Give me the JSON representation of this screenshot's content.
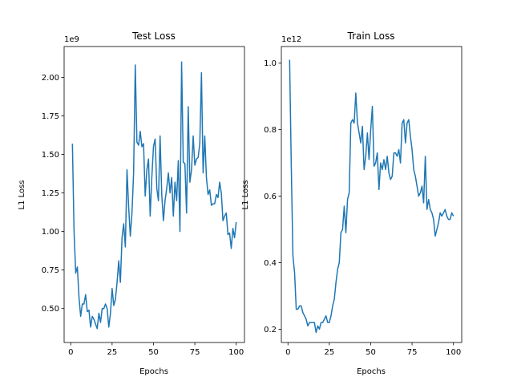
{
  "chart_data": [
    {
      "type": "line",
      "title": "Test Loss",
      "xlabel": "Epochs",
      "ylabel": "L1 Loss",
      "offset_text": "1e9",
      "scale": 1000000000,
      "xlim": [
        -4,
        105
      ],
      "ylim": [
        0.28,
        2.2
      ],
      "xticks": [
        0,
        25,
        50,
        75,
        100
      ],
      "xtick_labels": [
        "0",
        "25",
        "50",
        "75",
        "100"
      ],
      "yticks": [
        0.5,
        0.75,
        1.0,
        1.25,
        1.5,
        1.75,
        2.0
      ],
      "ytick_labels": [
        "0.50",
        "0.75",
        "1.00",
        "1.25",
        "1.50",
        "1.75",
        "2.00"
      ],
      "grid": false,
      "color": "#1f77b4",
      "series": [
        {
          "x": [
            1,
            2,
            3,
            4,
            5,
            6,
            7,
            8,
            9,
            10,
            11,
            12,
            13,
            14,
            15,
            16,
            17,
            18,
            19,
            20,
            21,
            22,
            23,
            24,
            25,
            26,
            27,
            28,
            29,
            30,
            31,
            32,
            33,
            34,
            35,
            36,
            37,
            38,
            39,
            40,
            41,
            42,
            43,
            44,
            45,
            46,
            47,
            48,
            49,
            50,
            51,
            52,
            53,
            54,
            55,
            56,
            57,
            58,
            59,
            60,
            61,
            62,
            63,
            64,
            65,
            66,
            67,
            68,
            69,
            70,
            71,
            72,
            73,
            74,
            75,
            76,
            77,
            78,
            79,
            80,
            81,
            82,
            83,
            84,
            85,
            86,
            87,
            88,
            89,
            90,
            91,
            92,
            93,
            94,
            95,
            96,
            97,
            98,
            99,
            100
          ],
          "y": [
            1.57,
            1.0,
            0.73,
            0.77,
            0.57,
            0.45,
            0.53,
            0.53,
            0.59,
            0.48,
            0.49,
            0.38,
            0.45,
            0.43,
            0.4,
            0.37,
            0.47,
            0.41,
            0.5,
            0.5,
            0.53,
            0.5,
            0.38,
            0.47,
            0.63,
            0.52,
            0.56,
            0.67,
            0.81,
            0.67,
            0.96,
            1.05,
            0.9,
            1.4,
            1.16,
            0.97,
            1.12,
            1.38,
            2.08,
            1.58,
            1.56,
            1.65,
            1.55,
            1.57,
            1.23,
            1.4,
            1.47,
            1.1,
            1.35,
            1.55,
            1.6,
            1.28,
            1.2,
            1.62,
            1.24,
            1.07,
            1.2,
            1.28,
            1.38,
            1.25,
            1.35,
            1.1,
            1.32,
            1.2,
            1.46,
            1.0,
            2.1,
            1.45,
            1.44,
            1.12,
            1.81,
            1.32,
            1.4,
            1.62,
            1.43,
            1.47,
            1.48,
            1.57,
            2.03,
            1.38,
            1.62,
            1.35,
            1.24,
            1.27,
            1.17,
            1.18,
            1.18,
            1.24,
            1.22,
            1.32,
            1.25,
            1.07,
            1.1,
            1.12,
            0.98,
            0.99,
            0.89,
            1.02,
            0.96,
            1.06
          ]
        }
      ]
    },
    {
      "type": "line",
      "title": "Train Loss",
      "xlabel": "Epochs",
      "ylabel": "L1 Loss",
      "offset_text": "1e12",
      "scale": 1000000000000,
      "xlim": [
        -4,
        105
      ],
      "ylim": [
        0.16,
        1.05
      ],
      "xticks": [
        0,
        25,
        50,
        75,
        100
      ],
      "xtick_labels": [
        "0",
        "25",
        "50",
        "75",
        "100"
      ],
      "yticks": [
        0.2,
        0.4,
        0.6,
        0.8,
        1.0
      ],
      "ytick_labels": [
        "0.2",
        "0.4",
        "0.6",
        "0.8",
        "1.0"
      ],
      "grid": false,
      "color": "#1f77b4",
      "series": [
        {
          "x": [
            1,
            2,
            3,
            4,
            5,
            6,
            7,
            8,
            9,
            10,
            11,
            12,
            13,
            14,
            15,
            16,
            17,
            18,
            19,
            20,
            21,
            22,
            23,
            24,
            25,
            26,
            27,
            28,
            29,
            30,
            31,
            32,
            33,
            34,
            35,
            36,
            37,
            38,
            39,
            40,
            41,
            42,
            43,
            44,
            45,
            46,
            47,
            48,
            49,
            50,
            51,
            52,
            53,
            54,
            55,
            56,
            57,
            58,
            59,
            60,
            61,
            62,
            63,
            64,
            65,
            66,
            67,
            68,
            69,
            70,
            71,
            72,
            73,
            74,
            75,
            76,
            77,
            78,
            79,
            80,
            81,
            82,
            83,
            84,
            85,
            86,
            87,
            88,
            89,
            90,
            91,
            92,
            93,
            94,
            95,
            96,
            97,
            98,
            99,
            100
          ],
          "y": [
            1.01,
            0.69,
            0.42,
            0.37,
            0.26,
            0.26,
            0.27,
            0.27,
            0.25,
            0.24,
            0.23,
            0.21,
            0.22,
            0.22,
            0.22,
            0.22,
            0.19,
            0.21,
            0.2,
            0.22,
            0.22,
            0.23,
            0.24,
            0.22,
            0.22,
            0.24,
            0.27,
            0.29,
            0.34,
            0.38,
            0.4,
            0.49,
            0.5,
            0.57,
            0.49,
            0.59,
            0.61,
            0.82,
            0.83,
            0.82,
            0.91,
            0.82,
            0.79,
            0.76,
            0.81,
            0.68,
            0.72,
            0.79,
            0.71,
            0.8,
            0.87,
            0.69,
            0.7,
            0.73,
            0.62,
            0.7,
            0.68,
            0.71,
            0.68,
            0.72,
            0.67,
            0.65,
            0.66,
            0.73,
            0.73,
            0.72,
            0.74,
            0.7,
            0.82,
            0.83,
            0.76,
            0.82,
            0.83,
            0.78,
            0.74,
            0.68,
            0.66,
            0.63,
            0.6,
            0.61,
            0.63,
            0.58,
            0.72,
            0.56,
            0.59,
            0.56,
            0.55,
            0.53,
            0.48,
            0.5,
            0.52,
            0.55,
            0.54,
            0.55,
            0.56,
            0.54,
            0.53,
            0.53,
            0.55,
            0.54
          ]
        }
      ]
    }
  ]
}
